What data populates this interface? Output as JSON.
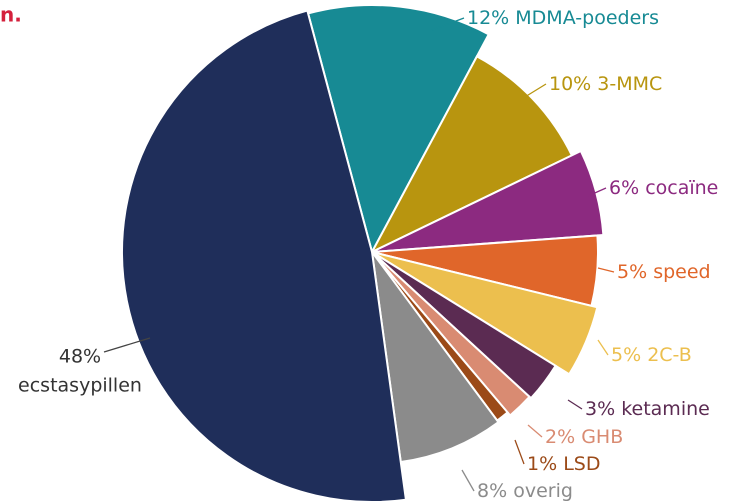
{
  "chart_data": {
    "type": "pie",
    "title": "n.",
    "categories": [
      "MDMA-poeders",
      "3-MMC",
      "cocaïne",
      "speed",
      "2C-B",
      "ketamine",
      "GHB",
      "LSD",
      "overig",
      "ecstasypillen"
    ],
    "values": [
      12,
      10,
      6,
      5,
      5,
      3,
      2,
      1,
      8,
      48
    ],
    "value_labels": [
      "12%",
      "10%",
      "6%",
      "5%",
      "5%",
      "3%",
      "2%",
      "1%",
      "8%",
      "48%"
    ],
    "colors": [
      "#178a94",
      "#b8950f",
      "#8c2a80",
      "#e0662a",
      "#ecbf4e",
      "#5b2b52",
      "#d98b72",
      "#9b4a18",
      "#8b8b8b",
      "#1f2e5a"
    ]
  }
}
